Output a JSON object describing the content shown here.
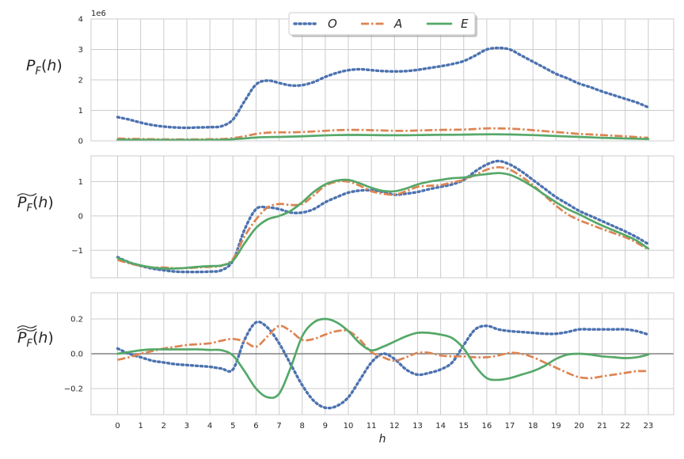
{
  "chart_data": [
    {
      "type": "line",
      "ylabel": "P_F(h)",
      "offset_text": "1e6",
      "ylim": [
        0,
        4000000
      ],
      "yticks": [
        0,
        1000000,
        2000000,
        3000000,
        4000000
      ],
      "ytick_labels": [
        "0",
        "1",
        "2",
        "3",
        "4"
      ],
      "grid": true,
      "legend": "top-center",
      "x": [
        0,
        0.5,
        1,
        1.5,
        2,
        2.5,
        3,
        3.5,
        4,
        4.5,
        5,
        5.5,
        6,
        6.5,
        7,
        7.5,
        8,
        8.5,
        9,
        9.5,
        10,
        10.5,
        11,
        11.5,
        12,
        12.5,
        13,
        13.5,
        14,
        14.5,
        15,
        15.5,
        16,
        16.5,
        17,
        17.5,
        18,
        18.5,
        19,
        19.5,
        20,
        20.5,
        21,
        21.5,
        22,
        22.5,
        23
      ],
      "series": [
        {
          "name": "O",
          "values": [
            780000,
            700000,
            600000,
            520000,
            470000,
            440000,
            430000,
            440000,
            450000,
            480000,
            700000,
            1300000,
            1850000,
            1980000,
            1900000,
            1820000,
            1830000,
            1930000,
            2100000,
            2230000,
            2320000,
            2350000,
            2320000,
            2290000,
            2280000,
            2290000,
            2330000,
            2390000,
            2450000,
            2520000,
            2620000,
            2800000,
            3000000,
            3050000,
            3000000,
            2800000,
            2600000,
            2400000,
            2200000,
            2050000,
            1880000,
            1760000,
            1620000,
            1500000,
            1380000,
            1260000,
            1100000
          ]
        },
        {
          "name": "A",
          "values": [
            80000,
            70000,
            60000,
            55000,
            50000,
            50000,
            50000,
            50000,
            55000,
            60000,
            90000,
            150000,
            230000,
            270000,
            280000,
            280000,
            290000,
            310000,
            330000,
            350000,
            360000,
            360000,
            350000,
            340000,
            330000,
            330000,
            340000,
            350000,
            360000,
            365000,
            370000,
            390000,
            410000,
            410000,
            400000,
            380000,
            350000,
            320000,
            290000,
            260000,
            230000,
            210000,
            190000,
            170000,
            150000,
            125000,
            100000
          ]
        },
        {
          "name": "E",
          "values": [
            40000,
            38000,
            35000,
            32000,
            30000,
            30000,
            30000,
            30000,
            32000,
            35000,
            55000,
            80000,
            110000,
            125000,
            130000,
            140000,
            150000,
            165000,
            180000,
            190000,
            195000,
            195000,
            190000,
            185000,
            185000,
            185000,
            190000,
            195000,
            200000,
            200000,
            205000,
            210000,
            215000,
            215000,
            210000,
            200000,
            190000,
            175000,
            160000,
            145000,
            130000,
            115000,
            100000,
            90000,
            80000,
            70000,
            60000
          ]
        }
      ]
    },
    {
      "type": "line",
      "ylabel": "~P_F(h)",
      "ylim": [
        -1.8,
        1.75
      ],
      "yticks": [
        -1,
        0,
        1
      ],
      "ytick_labels": [
        "−1",
        "0",
        "1"
      ],
      "grid": true,
      "x": [
        0,
        0.5,
        1,
        1.5,
        2,
        2.5,
        3,
        3.5,
        4,
        4.5,
        5,
        5.5,
        6,
        6.5,
        7,
        7.5,
        8,
        8.5,
        9,
        9.5,
        10,
        10.5,
        11,
        11.5,
        12,
        12.5,
        13,
        13.5,
        14,
        14.5,
        15,
        15.5,
        16,
        16.5,
        17,
        17.5,
        18,
        18.5,
        19,
        19.5,
        20,
        20.5,
        21,
        21.5,
        22,
        22.5,
        23
      ],
      "series": [
        {
          "name": "O",
          "values": [
            -1.2,
            -1.35,
            -1.45,
            -1.53,
            -1.58,
            -1.62,
            -1.63,
            -1.63,
            -1.62,
            -1.58,
            -1.3,
            -0.4,
            0.2,
            0.25,
            0.2,
            0.1,
            0.1,
            0.2,
            0.4,
            0.55,
            0.68,
            0.74,
            0.75,
            0.7,
            0.62,
            0.65,
            0.7,
            0.78,
            0.85,
            0.92,
            1.05,
            1.3,
            1.5,
            1.6,
            1.5,
            1.3,
            1.05,
            0.8,
            0.55,
            0.35,
            0.15,
            0.0,
            -0.15,
            -0.3,
            -0.45,
            -0.62,
            -0.82
          ]
        },
        {
          "name": "A",
          "values": [
            -1.28,
            -1.38,
            -1.45,
            -1.5,
            -1.5,
            -1.52,
            -1.52,
            -1.5,
            -1.48,
            -1.45,
            -1.25,
            -0.6,
            -0.1,
            0.25,
            0.35,
            0.32,
            0.35,
            0.6,
            0.88,
            1.0,
            1.0,
            0.88,
            0.72,
            0.65,
            0.62,
            0.72,
            0.85,
            0.88,
            0.9,
            0.98,
            1.05,
            1.2,
            1.35,
            1.42,
            1.35,
            1.15,
            0.9,
            0.6,
            0.3,
            0.05,
            -0.12,
            -0.25,
            -0.38,
            -0.5,
            -0.62,
            -0.78,
            -0.98
          ]
        },
        {
          "name": "E",
          "values": [
            -1.22,
            -1.35,
            -1.44,
            -1.5,
            -1.53,
            -1.53,
            -1.51,
            -1.48,
            -1.46,
            -1.44,
            -1.3,
            -0.8,
            -0.35,
            -0.1,
            0.0,
            0.15,
            0.4,
            0.7,
            0.92,
            1.03,
            1.05,
            0.95,
            0.82,
            0.73,
            0.72,
            0.8,
            0.92,
            1.0,
            1.05,
            1.1,
            1.12,
            1.18,
            1.22,
            1.25,
            1.2,
            1.05,
            0.85,
            0.62,
            0.4,
            0.2,
            0.05,
            -0.12,
            -0.28,
            -0.42,
            -0.56,
            -0.72,
            -0.95
          ]
        }
      ]
    },
    {
      "type": "line",
      "ylabel": "≈P_F(h)",
      "ylim": [
        -0.35,
        0.35
      ],
      "yticks": [
        -0.2,
        0.0,
        0.2
      ],
      "ytick_labels": [
        "−0.2",
        "0.0",
        "0.2"
      ],
      "grid": true,
      "hline": 0,
      "xlabel": "h",
      "xticks": [
        0,
        1,
        2,
        3,
        4,
        5,
        6,
        7,
        8,
        9,
        10,
        11,
        12,
        13,
        14,
        15,
        16,
        17,
        18,
        19,
        20,
        21,
        22,
        23
      ],
      "xtick_labels": [
        "0",
        "1",
        "2",
        "3",
        "4",
        "5",
        "6",
        "7",
        "8",
        "9",
        "10",
        "11",
        "12",
        "13",
        "14",
        "15",
        "16",
        "17",
        "18",
        "19",
        "20",
        "21",
        "22",
        "23"
      ],
      "x": [
        0,
        0.5,
        1,
        1.5,
        2,
        2.5,
        3,
        3.5,
        4,
        4.5,
        5,
        5.5,
        6,
        6.5,
        7,
        7.5,
        8,
        8.5,
        9,
        9.5,
        10,
        10.5,
        11,
        11.5,
        12,
        12.5,
        13,
        13.5,
        14,
        14.5,
        15,
        15.5,
        16,
        16.5,
        17,
        17.5,
        18,
        18.5,
        19,
        19.5,
        20,
        20.5,
        21,
        21.5,
        22,
        22.5,
        23
      ],
      "series": [
        {
          "name": "O",
          "values": [
            0.03,
            0.0,
            -0.02,
            -0.04,
            -0.05,
            -0.06,
            -0.065,
            -0.07,
            -0.075,
            -0.085,
            -0.09,
            0.08,
            0.18,
            0.15,
            0.06,
            -0.06,
            -0.18,
            -0.27,
            -0.31,
            -0.3,
            -0.25,
            -0.15,
            -0.05,
            0.0,
            -0.03,
            -0.09,
            -0.12,
            -0.11,
            -0.09,
            -0.05,
            0.05,
            0.14,
            0.16,
            0.14,
            0.13,
            0.125,
            0.12,
            0.115,
            0.115,
            0.125,
            0.14,
            0.14,
            0.14,
            0.14,
            0.14,
            0.13,
            0.11
          ]
        },
        {
          "name": "A",
          "values": [
            -0.035,
            -0.02,
            0.0,
            0.015,
            0.03,
            0.04,
            0.05,
            0.055,
            0.06,
            0.075,
            0.085,
            0.07,
            0.04,
            0.1,
            0.16,
            0.13,
            0.08,
            0.085,
            0.11,
            0.13,
            0.13,
            0.08,
            0.01,
            -0.02,
            -0.04,
            -0.02,
            0.005,
            0.005,
            -0.01,
            -0.015,
            -0.015,
            -0.02,
            -0.02,
            -0.01,
            0.005,
            0.0,
            -0.02,
            -0.05,
            -0.08,
            -0.11,
            -0.135,
            -0.14,
            -0.13,
            -0.12,
            -0.11,
            -0.1,
            -0.1
          ]
        },
        {
          "name": "E",
          "values": [
            0.0,
            0.01,
            0.02,
            0.025,
            0.025,
            0.025,
            0.025,
            0.025,
            0.022,
            0.02,
            -0.01,
            -0.1,
            -0.2,
            -0.25,
            -0.23,
            -0.08,
            0.1,
            0.18,
            0.2,
            0.18,
            0.13,
            0.06,
            0.02,
            0.04,
            0.07,
            0.1,
            0.12,
            0.12,
            0.11,
            0.09,
            0.03,
            -0.07,
            -0.14,
            -0.15,
            -0.14,
            -0.12,
            -0.1,
            -0.07,
            -0.03,
            -0.005,
            0.0,
            -0.005,
            -0.015,
            -0.02,
            -0.025,
            -0.02,
            -0.005
          ]
        }
      ]
    }
  ],
  "legend": {
    "labels": [
      "O",
      "A",
      "E"
    ]
  },
  "colors": {
    "O": "#4c72b0",
    "A": "#dd8452",
    "E": "#55a868",
    "grid": "#cccccc",
    "frame": "#cccccc",
    "zero_line": "#808080"
  }
}
